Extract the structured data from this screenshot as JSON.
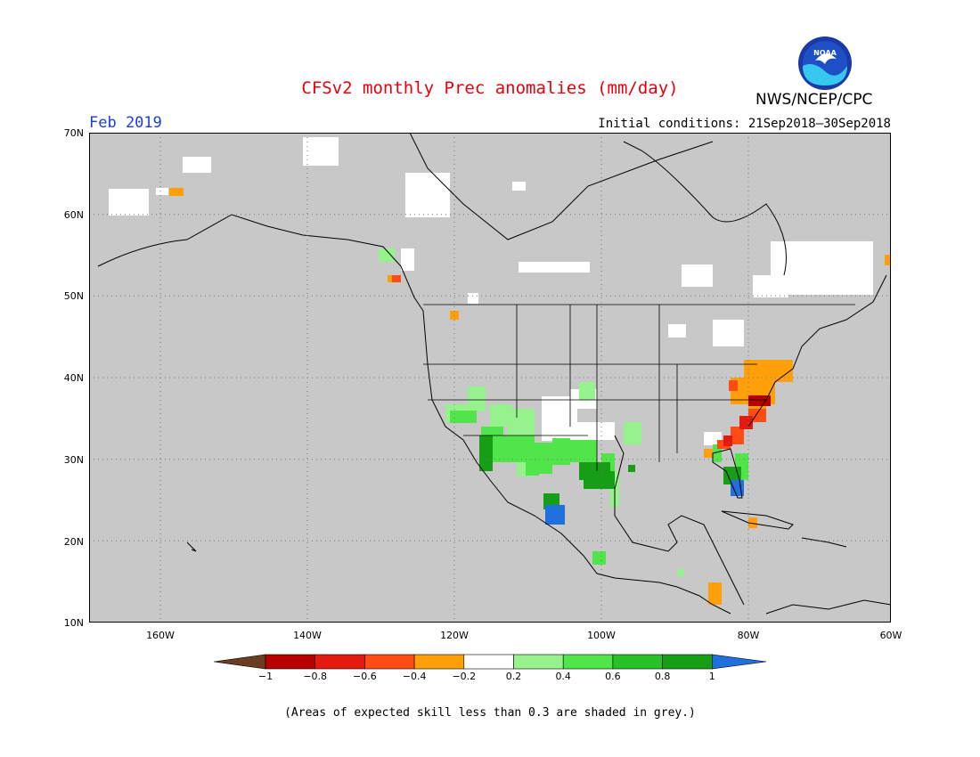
{
  "title": "CFSv2 monthly Prec anomalies (mm/day)",
  "agency": "NWS/NCEP/CPC",
  "logo_text": "NOAA",
  "period": "Feb 2019",
  "initial_conditions": "Initial conditions: 21Sep2018–30Sep2018",
  "lat_labels": [
    "70N",
    "60N",
    "50N",
    "40N",
    "30N",
    "20N",
    "10N"
  ],
  "lon_labels": [
    "160W",
    "140W",
    "120W",
    "100W",
    "80W",
    "60W"
  ],
  "colorbar": {
    "labels": [
      "−1",
      "−0.8",
      "−0.6",
      "−0.4",
      "−0.2",
      "0.2",
      "0.4",
      "0.6",
      "0.8",
      "1"
    ],
    "colors": {
      "below_min": "#6b3e22",
      "bins": [
        "#b80000",
        "#e31a0d",
        "#ff4c15",
        "#ff9f0a",
        "#ffffff",
        "#96f28c",
        "#50e64a",
        "#28c228",
        "#169e16"
      ],
      "above_max": "#1f6fdc"
    }
  },
  "footnote": "(Areas of expected skill less than 0.3 are shaded in grey.)",
  "colors": {
    "skill_mask": "#c8c8c8",
    "title": "#e8000b",
    "period": "#1c3fd6"
  }
}
